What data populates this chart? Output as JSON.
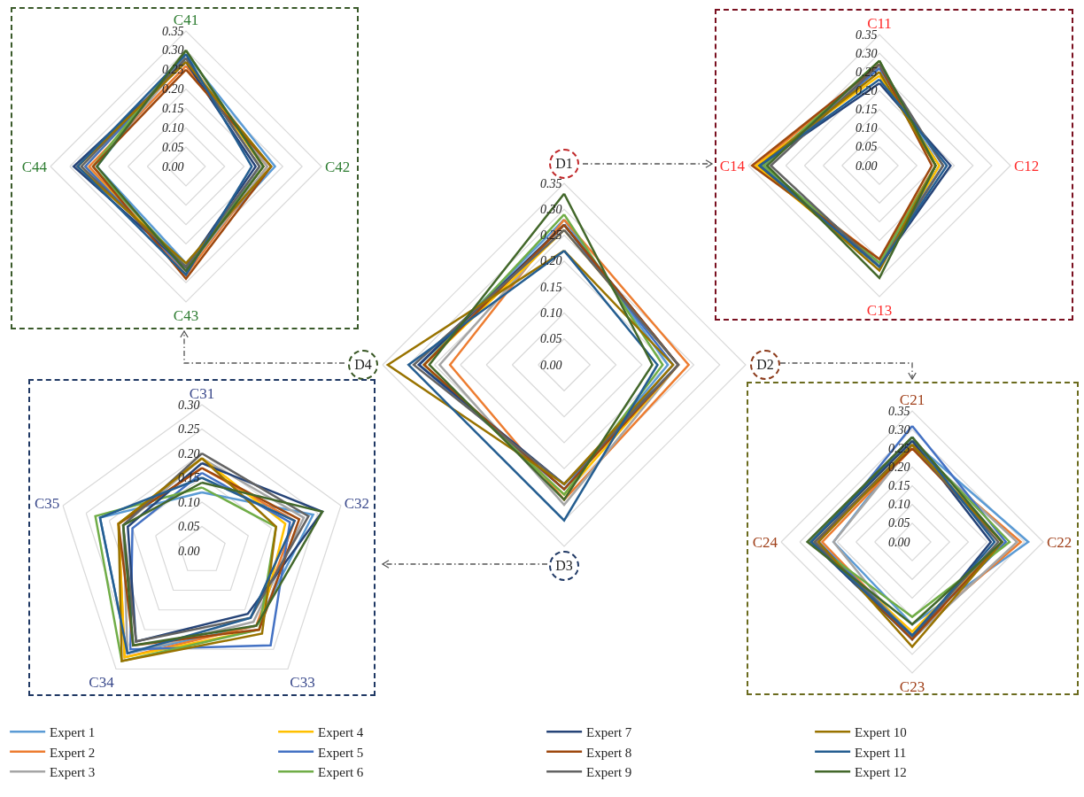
{
  "chart_data": [
    {
      "type": "radar",
      "categories": [
        "C41",
        "C42",
        "C43",
        "C44"
      ],
      "ylim": [
        0,
        0.35
      ],
      "yticks": [
        {
          "value": 0,
          "label": "0.00"
        },
        {
          "value": 0.05,
          "label": "0.05"
        },
        {
          "value": 0.1,
          "label": "0.10"
        },
        {
          "value": 0.15,
          "label": "0.15"
        },
        {
          "value": 0.2,
          "label": "0.20"
        },
        {
          "value": 0.25,
          "label": "0.25"
        },
        {
          "value": 0.3,
          "label": "0.30"
        },
        {
          "value": 0.35,
          "label": "0.35"
        }
      ],
      "grid": true,
      "series": [
        {
          "color": "#5b9bd5",
          "values": [
            0.29,
            0.23,
            0.25,
            0.23
          ]
        },
        {
          "color": "#ed7d31",
          "values": [
            0.26,
            0.21,
            0.28,
            0.25
          ]
        },
        {
          "color": "#a5a5a5",
          "values": [
            0.28,
            0.21,
            0.27,
            0.24
          ]
        },
        {
          "color": "#ffc000",
          "values": [
            0.28,
            0.2,
            0.26,
            0.26
          ]
        },
        {
          "color": "#4472c4",
          "values": [
            0.28,
            0.19,
            0.27,
            0.26
          ]
        },
        {
          "color": "#70ad47",
          "values": [
            0.3,
            0.2,
            0.26,
            0.24
          ]
        },
        {
          "color": "#264478",
          "values": [
            0.27,
            0.18,
            0.26,
            0.29
          ]
        },
        {
          "color": "#9e480e",
          "values": [
            0.25,
            0.22,
            0.29,
            0.24
          ]
        },
        {
          "color": "#636363",
          "values": [
            0.28,
            0.19,
            0.26,
            0.27
          ]
        },
        {
          "color": "#997300",
          "values": [
            0.27,
            0.22,
            0.25,
            0.28
          ]
        },
        {
          "color": "#255e91",
          "values": [
            0.29,
            0.17,
            0.28,
            0.28
          ]
        },
        {
          "color": "#43682b",
          "values": [
            0.3,
            0.2,
            0.27,
            0.23
          ]
        }
      ]
    },
    {
      "type": "radar",
      "categories": [
        "C11",
        "C12",
        "C13",
        "C14"
      ],
      "ylim": [
        0,
        0.35
      ],
      "yticks": [
        {
          "value": 0,
          "label": "0.00"
        },
        {
          "value": 0.05,
          "label": "0.05"
        },
        {
          "value": 0.1,
          "label": "0.10"
        },
        {
          "value": 0.15,
          "label": "0.15"
        },
        {
          "value": 0.2,
          "label": "0.20"
        },
        {
          "value": 0.25,
          "label": "0.25"
        },
        {
          "value": 0.3,
          "label": "0.30"
        },
        {
          "value": 0.35,
          "label": "0.35"
        }
      ],
      "grid": true,
      "series": [
        {
          "color": "#5b9bd5",
          "values": [
            0.26,
            0.16,
            0.26,
            0.32
          ]
        },
        {
          "color": "#ed7d31",
          "values": [
            0.27,
            0.15,
            0.25,
            0.33
          ]
        },
        {
          "color": "#a5a5a5",
          "values": [
            0.27,
            0.15,
            0.27,
            0.31
          ]
        },
        {
          "color": "#ffc000",
          "values": [
            0.24,
            0.16,
            0.27,
            0.33
          ]
        },
        {
          "color": "#4472c4",
          "values": [
            0.26,
            0.17,
            0.26,
            0.31
          ]
        },
        {
          "color": "#70ad47",
          "values": [
            0.28,
            0.15,
            0.26,
            0.31
          ]
        },
        {
          "color": "#264478",
          "values": [
            0.22,
            0.19,
            0.27,
            0.32
          ]
        },
        {
          "color": "#9e480e",
          "values": [
            0.27,
            0.14,
            0.25,
            0.34
          ]
        },
        {
          "color": "#636363",
          "values": [
            0.27,
            0.17,
            0.27,
            0.29
          ]
        },
        {
          "color": "#997300",
          "values": [
            0.25,
            0.15,
            0.28,
            0.32
          ]
        },
        {
          "color": "#255e91",
          "values": [
            0.23,
            0.18,
            0.27,
            0.32
          ]
        },
        {
          "color": "#43682b",
          "values": [
            0.28,
            0.15,
            0.3,
            0.3
          ]
        }
      ]
    },
    {
      "type": "radar",
      "categories": [
        "D1",
        "D2",
        "D3",
        "D4"
      ],
      "ylim": [
        0,
        0.35
      ],
      "yticks": [
        {
          "value": 0,
          "label": "0.00"
        },
        {
          "value": 0.05,
          "label": "0.05"
        },
        {
          "value": 0.1,
          "label": "0.10"
        },
        {
          "value": 0.15,
          "label": "0.15"
        },
        {
          "value": 0.2,
          "label": "0.20"
        },
        {
          "value": 0.25,
          "label": "0.25"
        },
        {
          "value": 0.3,
          "label": "0.30"
        },
        {
          "value": 0.35,
          "label": "0.35"
        }
      ],
      "grid": true,
      "legend": "bottom",
      "series": [
        {
          "name": "Expert 1",
          "color": "#5b9bd5",
          "values": [
            0.28,
            0.2,
            0.24,
            0.28
          ]
        },
        {
          "name": "Expert 2",
          "color": "#ed7d31",
          "values": [
            0.28,
            0.24,
            0.26,
            0.22
          ]
        },
        {
          "name": "Expert 3",
          "color": "#a5a5a5",
          "values": [
            0.27,
            0.22,
            0.27,
            0.24
          ]
        },
        {
          "name": "Expert 4",
          "color": "#ffc000",
          "values": [
            0.26,
            0.22,
            0.25,
            0.27
          ]
        },
        {
          "name": "Expert 5",
          "color": "#4472c4",
          "values": [
            0.27,
            0.21,
            0.24,
            0.28
          ]
        },
        {
          "name": "Expert 6",
          "color": "#70ad47",
          "values": [
            0.29,
            0.19,
            0.25,
            0.27
          ]
        },
        {
          "name": "Expert 7",
          "color": "#264478",
          "values": [
            0.27,
            0.22,
            0.23,
            0.28
          ]
        },
        {
          "name": "Expert 8",
          "color": "#9e480e",
          "values": [
            0.27,
            0.22,
            0.24,
            0.27
          ]
        },
        {
          "name": "Expert 9",
          "color": "#636363",
          "values": [
            0.26,
            0.22,
            0.23,
            0.29
          ]
        },
        {
          "name": "Expert 10",
          "color": "#997300",
          "values": [
            0.22,
            0.21,
            0.23,
            0.34
          ]
        },
        {
          "name": "Expert 11",
          "color": "#255e91",
          "values": [
            0.22,
            0.18,
            0.3,
            0.3
          ]
        },
        {
          "name": "Expert 12",
          "color": "#43682b",
          "values": [
            0.33,
            0.17,
            0.26,
            0.26
          ]
        }
      ]
    },
    {
      "type": "radar",
      "categories": [
        "C31",
        "C32",
        "C33",
        "C34",
        "C35"
      ],
      "ylim": [
        0,
        0.3
      ],
      "yticks": [
        {
          "value": 0,
          "label": "0.00"
        },
        {
          "value": 0.05,
          "label": "0.05"
        },
        {
          "value": 0.1,
          "label": "0.10"
        },
        {
          "value": 0.15,
          "label": "0.15"
        },
        {
          "value": 0.2,
          "label": "0.20"
        },
        {
          "value": 0.25,
          "label": "0.25"
        },
        {
          "value": 0.3,
          "label": "0.30"
        }
      ],
      "grid": true,
      "series": [
        {
          "color": "#5b9bd5",
          "values": [
            0.12,
            0.24,
            0.19,
            0.26,
            0.22
          ]
        },
        {
          "color": "#ed7d31",
          "values": [
            0.17,
            0.2,
            0.19,
            0.27,
            0.18
          ]
        },
        {
          "color": "#a5a5a5",
          "values": [
            0.19,
            0.22,
            0.18,
            0.26,
            0.17
          ]
        },
        {
          "color": "#ffc000",
          "values": [
            0.19,
            0.18,
            0.2,
            0.27,
            0.18
          ]
        },
        {
          "color": "#4472c4",
          "values": [
            0.16,
            0.19,
            0.24,
            0.25,
            0.15
          ]
        },
        {
          "color": "#70ad47",
          "values": [
            0.13,
            0.16,
            0.2,
            0.28,
            0.23
          ]
        },
        {
          "color": "#264478",
          "values": [
            0.18,
            0.26,
            0.16,
            0.23,
            0.16
          ]
        },
        {
          "color": "#9e480e",
          "values": [
            0.17,
            0.21,
            0.2,
            0.24,
            0.18
          ]
        },
        {
          "color": "#636363",
          "values": [
            0.2,
            0.23,
            0.17,
            0.23,
            0.17
          ]
        },
        {
          "color": "#997300",
          "values": [
            0.19,
            0.16,
            0.21,
            0.28,
            0.18
          ]
        },
        {
          "color": "#255e91",
          "values": [
            0.15,
            0.2,
            0.17,
            0.26,
            0.22
          ]
        },
        {
          "color": "#43682b",
          "values": [
            0.14,
            0.26,
            0.19,
            0.24,
            0.17
          ]
        }
      ]
    },
    {
      "type": "radar",
      "categories": [
        "C21",
        "C22",
        "C23",
        "C24"
      ],
      "ylim": [
        0,
        0.35
      ],
      "yticks": [
        {
          "value": 0,
          "label": "0.00"
        },
        {
          "value": 0.05,
          "label": "0.05"
        },
        {
          "value": 0.1,
          "label": "0.10"
        },
        {
          "value": 0.15,
          "label": "0.15"
        },
        {
          "value": 0.2,
          "label": "0.20"
        },
        {
          "value": 0.25,
          "label": "0.25"
        },
        {
          "value": 0.3,
          "label": "0.30"
        },
        {
          "value": 0.35,
          "label": "0.35"
        }
      ],
      "grid": true,
      "series": [
        {
          "color": "#5b9bd5",
          "values": [
            0.27,
            0.31,
            0.22,
            0.21
          ]
        },
        {
          "color": "#ed7d31",
          "values": [
            0.25,
            0.29,
            0.25,
            0.24
          ]
        },
        {
          "color": "#a5a5a5",
          "values": [
            0.26,
            0.28,
            0.26,
            0.21
          ]
        },
        {
          "color": "#ffc000",
          "values": [
            0.26,
            0.24,
            0.24,
            0.26
          ]
        },
        {
          "color": "#4472c4",
          "values": [
            0.31,
            0.25,
            0.25,
            0.25
          ]
        },
        {
          "color": "#70ad47",
          "values": [
            0.27,
            0.26,
            0.2,
            0.27
          ]
        },
        {
          "color": "#264478",
          "values": [
            0.27,
            0.21,
            0.26,
            0.27
          ]
        },
        {
          "color": "#9e480e",
          "values": [
            0.25,
            0.24,
            0.26,
            0.26
          ]
        },
        {
          "color": "#636363",
          "values": [
            0.26,
            0.23,
            0.25,
            0.26
          ]
        },
        {
          "color": "#997300",
          "values": [
            0.26,
            0.24,
            0.28,
            0.25
          ]
        },
        {
          "color": "#255e91",
          "values": [
            0.28,
            0.22,
            0.25,
            0.27
          ]
        },
        {
          "color": "#43682b",
          "values": [
            0.28,
            0.24,
            0.22,
            0.28
          ]
        }
      ]
    }
  ]
}
